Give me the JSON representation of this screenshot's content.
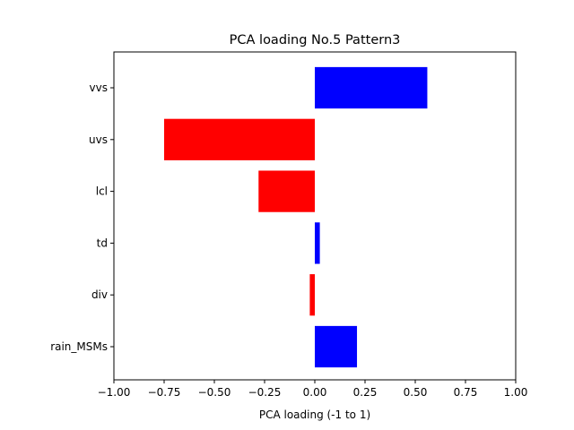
{
  "chart_data": {
    "type": "bar",
    "orientation": "horizontal",
    "title": "PCA loading No.5 Pattern3",
    "xlabel": "PCA loading (-1 to 1)",
    "ylabel": "",
    "xlim": [
      -1.0,
      1.0
    ],
    "xticks": [
      -1.0,
      -0.75,
      -0.5,
      -0.25,
      0.0,
      0.25,
      0.5,
      0.75,
      1.0
    ],
    "xtick_labels": [
      "−1.00",
      "−0.75",
      "−0.50",
      "−0.25",
      "0.00",
      "0.25",
      "0.50",
      "0.75",
      "1.00"
    ],
    "categories": [
      "rain_MSMs",
      "div",
      "td",
      "lcl",
      "uvs",
      "vvs"
    ],
    "values": [
      0.21,
      -0.025,
      0.025,
      -0.28,
      -0.75,
      0.56
    ],
    "positive_color": "#0000ff",
    "negative_color": "#ff0000",
    "grid": false,
    "legend": "none"
  }
}
